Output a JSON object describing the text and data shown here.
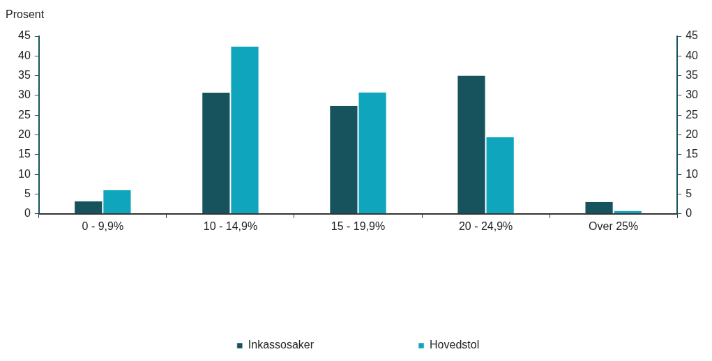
{
  "chart_data": {
    "type": "bar",
    "ylabel": "Prosent",
    "categories": [
      "0 - 9,9%",
      "10 - 14,9%",
      "15 - 19,9%",
      "20 - 24,9%",
      "Over 25%"
    ],
    "series": [
      {
        "name": "Inkassosaker",
        "color": "#17535c",
        "values": [
          3.2,
          30.7,
          27.4,
          35.0,
          3.0
        ]
      },
      {
        "name": "Hovedstol",
        "color": "#0ea5bd",
        "values": [
          6.0,
          42.4,
          30.8,
          19.4,
          0.7
        ]
      }
    ],
    "ylim": [
      0,
      45
    ],
    "yticks": [
      0,
      5,
      10,
      15,
      20,
      25,
      30,
      35,
      40,
      45
    ],
    "y2lim": [
      0,
      45
    ],
    "y2ticks": [
      0,
      5,
      10,
      15,
      20,
      25,
      30,
      35,
      40,
      45
    ],
    "grid": false,
    "legend": "bottom"
  }
}
